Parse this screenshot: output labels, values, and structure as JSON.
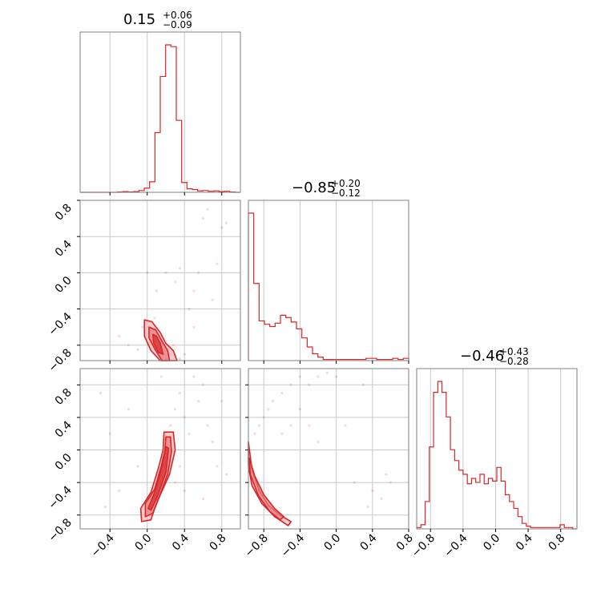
{
  "colors": {
    "series": "#d62728",
    "fill": "#f2b8b9",
    "grid": "#c8c8c8",
    "frame": "#7f7f7f"
  },
  "chart_data": {
    "type": "corner",
    "grid": true,
    "titles": [
      {
        "median": "0.15",
        "plus": "+0.06",
        "minus": "−0.09"
      },
      {
        "median": "−0.85",
        "plus": "+0.20",
        "minus": "−0.12"
      },
      {
        "median": "−0.46",
        "plus": "+0.43",
        "minus": "−0.28"
      }
    ],
    "axes": [
      {
        "range": [
          -0.72,
          1.0
        ],
        "ticks": [
          -0.4,
          0.0,
          0.4,
          0.8
        ],
        "tick_labels": [
          "−0.4",
          "0.0",
          "0.4",
          "0.8"
        ]
      },
      {
        "range": [
          -0.97,
          0.8
        ],
        "ticks": [
          -0.8,
          -0.4,
          0.0,
          0.4,
          0.8
        ],
        "tick_labels": [
          "−0.8",
          "−0.4",
          "0.0",
          "0.4",
          "0.8"
        ]
      },
      {
        "range": [
          -0.97,
          1.0
        ],
        "ticks": [
          -0.8,
          -0.4,
          0.0,
          0.4,
          0.8
        ],
        "tick_labels": [
          "−0.8",
          "−0.4",
          "0.0",
          "0.4",
          "0.8"
        ]
      }
    ],
    "histograms": [
      {
        "param": 0,
        "counts": [
          0,
          0,
          0,
          0,
          0,
          0,
          0,
          1,
          2,
          1,
          2,
          5,
          12,
          30,
          170,
          330,
          420,
          415,
          205,
          28,
          10,
          8,
          4,
          5,
          3,
          4,
          2,
          3,
          1,
          0
        ]
      },
      {
        "param": 1,
        "counts": [
          130,
          68,
          35,
          32,
          30,
          33,
          40,
          38,
          34,
          28,
          20,
          12,
          6,
          3,
          1,
          1,
          1,
          1,
          1,
          1,
          1,
          1,
          2,
          2,
          1,
          1,
          1,
          2,
          1,
          2
        ]
      },
      {
        "param": 2,
        "counts": [
          1,
          3,
          20,
          60,
          100,
          108,
          100,
          82,
          58,
          50,
          43,
          40,
          33,
          37,
          34,
          40,
          33,
          37,
          35,
          45,
          35,
          25,
          20,
          15,
          9,
          4,
          2,
          1,
          1,
          1,
          1,
          1,
          1,
          1,
          3,
          1,
          1,
          0
        ]
      }
    ],
    "pairs": [
      {
        "x_param": 0,
        "y_param": 1,
        "points": [
          [
            0.0,
            -0.6
          ],
          [
            0.02,
            -0.55
          ],
          [
            0.05,
            -0.7
          ],
          [
            0.1,
            -0.8
          ],
          [
            0.12,
            -0.9
          ],
          [
            0.15,
            -0.85
          ],
          [
            0.2,
            -0.95
          ],
          [
            0.25,
            -0.9
          ],
          [
            0.3,
            -0.92
          ],
          [
            0.35,
            -0.95
          ],
          [
            -0.1,
            -0.85
          ],
          [
            -0.05,
            -0.6
          ],
          [
            0.08,
            -0.5
          ],
          [
            0.28,
            -0.8
          ],
          [
            0.4,
            -0.9
          ],
          [
            0.45,
            -0.4
          ],
          [
            0.5,
            -0.2
          ],
          [
            0.55,
            0.0
          ],
          [
            0.6,
            0.6
          ],
          [
            0.65,
            0.7
          ],
          [
            0.7,
            -0.3
          ],
          [
            0.75,
            0.1
          ],
          [
            0.3,
            -0.1
          ],
          [
            0.2,
            0.0
          ],
          [
            0.0,
            0.0
          ],
          [
            0.1,
            -0.2
          ],
          [
            -0.3,
            -0.7
          ],
          [
            -0.2,
            -0.8
          ],
          [
            0.35,
            0.05
          ],
          [
            0.8,
            0.5
          ],
          [
            0.85,
            0.55
          ],
          [
            0.5,
            -0.6
          ]
        ],
        "contours": [
          [
            [
              -0.03,
              -0.52
            ],
            [
              0.05,
              -0.54
            ],
            [
              0.14,
              -0.66
            ],
            [
              0.2,
              -0.78
            ],
            [
              0.28,
              -0.86
            ],
            [
              0.32,
              -0.97
            ],
            [
              0.14,
              -0.97
            ],
            [
              0.04,
              -0.86
            ],
            [
              -0.03,
              -0.7
            ]
          ],
          [
            [
              0.02,
              -0.6
            ],
            [
              0.09,
              -0.63
            ],
            [
              0.15,
              -0.74
            ],
            [
              0.22,
              -0.86
            ],
            [
              0.24,
              -0.97
            ],
            [
              0.16,
              -0.97
            ],
            [
              0.08,
              -0.84
            ],
            [
              0.02,
              -0.72
            ]
          ],
          [
            [
              0.06,
              -0.68
            ],
            [
              0.1,
              -0.7
            ],
            [
              0.14,
              -0.78
            ],
            [
              0.17,
              -0.9
            ],
            [
              0.12,
              -0.88
            ],
            [
              0.07,
              -0.78
            ]
          ]
        ]
      },
      {
        "x_param": 0,
        "y_param": 2,
        "points": [
          [
            0.0,
            -0.8
          ],
          [
            0.05,
            -0.7
          ],
          [
            0.1,
            -0.6
          ],
          [
            0.2,
            0.0
          ],
          [
            0.25,
            0.3
          ],
          [
            0.3,
            0.5
          ],
          [
            0.35,
            0.7
          ],
          [
            0.4,
            0.4
          ],
          [
            0.45,
            0.2
          ],
          [
            0.5,
            0.9
          ],
          [
            0.55,
            0.6
          ],
          [
            0.6,
            0.8
          ],
          [
            0.65,
            0.3
          ],
          [
            0.7,
            0.1
          ],
          [
            -0.1,
            -0.2
          ],
          [
            -0.2,
            0.5
          ],
          [
            -0.3,
            -0.5
          ],
          [
            -0.4,
            0.2
          ],
          [
            -0.5,
            0.7
          ],
          [
            0.75,
            -0.2
          ],
          [
            0.8,
            0.6
          ],
          [
            0.85,
            -0.3
          ],
          [
            0.15,
            0.9
          ],
          [
            0.3,
            -0.4
          ],
          [
            0.35,
            -0.2
          ],
          [
            0.4,
            -0.5
          ],
          [
            -0.45,
            -0.7
          ],
          [
            0.6,
            -0.6
          ]
        ],
        "contours": [
          [
            [
              0.18,
              0.22
            ],
            [
              0.28,
              0.22
            ],
            [
              0.3,
              0.0
            ],
            [
              0.24,
              -0.3
            ],
            [
              0.14,
              -0.55
            ],
            [
              0.08,
              -0.72
            ],
            [
              0.04,
              -0.86
            ],
            [
              -0.06,
              -0.88
            ],
            [
              -0.07,
              -0.72
            ],
            [
              0.04,
              -0.52
            ],
            [
              0.12,
              -0.22
            ],
            [
              0.17,
              0.0
            ]
          ],
          [
            [
              0.2,
              0.16
            ],
            [
              0.25,
              0.16
            ],
            [
              0.26,
              -0.02
            ],
            [
              0.22,
              -0.3
            ],
            [
              0.12,
              -0.6
            ],
            [
              0.06,
              -0.78
            ],
            [
              -0.02,
              -0.82
            ],
            [
              -0.02,
              -0.66
            ],
            [
              0.08,
              -0.48
            ],
            [
              0.15,
              -0.2
            ],
            [
              0.19,
              0.0
            ]
          ],
          [
            [
              0.2,
              0.04
            ],
            [
              0.23,
              0.02
            ],
            [
              0.2,
              -0.28
            ],
            [
              0.1,
              -0.6
            ],
            [
              0.04,
              -0.74
            ],
            [
              0.01,
              -0.72
            ],
            [
              0.08,
              -0.52
            ],
            [
              0.15,
              -0.24
            ]
          ]
        ]
      },
      {
        "x_param": 1,
        "y_param": 2,
        "points": [
          [
            -0.9,
            0.2
          ],
          [
            -0.85,
            0.3
          ],
          [
            -0.8,
            0.4
          ],
          [
            -0.75,
            0.5
          ],
          [
            -0.7,
            0.6
          ],
          [
            -0.6,
            0.7
          ],
          [
            -0.5,
            0.8
          ],
          [
            -0.4,
            0.9
          ],
          [
            -0.3,
            0.8
          ],
          [
            -0.2,
            0.9
          ],
          [
            -0.1,
            0.95
          ],
          [
            0.0,
            0.9
          ],
          [
            0.1,
            0.3
          ],
          [
            0.3,
            0.8
          ],
          [
            0.4,
            -0.5
          ],
          [
            0.5,
            -0.6
          ],
          [
            0.6,
            -0.4
          ],
          [
            -0.5,
            0.3
          ],
          [
            -0.6,
            0.2
          ],
          [
            -0.4,
            0.5
          ],
          [
            -0.3,
            0.3
          ],
          [
            -0.2,
            0.1
          ],
          [
            0.2,
            -0.4
          ],
          [
            0.35,
            -0.7
          ],
          [
            0.55,
            -0.3
          ]
        ],
        "contours": [
          [
            [
              -0.97,
              0.1
            ],
            [
              -0.93,
              -0.25
            ],
            [
              -0.85,
              -0.5
            ],
            [
              -0.75,
              -0.68
            ],
            [
              -0.62,
              -0.8
            ],
            [
              -0.5,
              -0.88
            ],
            [
              -0.53,
              -0.93
            ],
            [
              -0.68,
              -0.82
            ],
            [
              -0.82,
              -0.66
            ],
            [
              -0.93,
              -0.44
            ],
            [
              -0.97,
              -0.2
            ]
          ],
          [
            [
              -0.96,
              -0.1
            ],
            [
              -0.9,
              -0.32
            ],
            [
              -0.8,
              -0.55
            ],
            [
              -0.68,
              -0.72
            ],
            [
              -0.58,
              -0.82
            ],
            [
              -0.62,
              -0.86
            ],
            [
              -0.74,
              -0.75
            ],
            [
              -0.86,
              -0.56
            ],
            [
              -0.95,
              -0.3
            ]
          ]
        ]
      }
    ]
  }
}
